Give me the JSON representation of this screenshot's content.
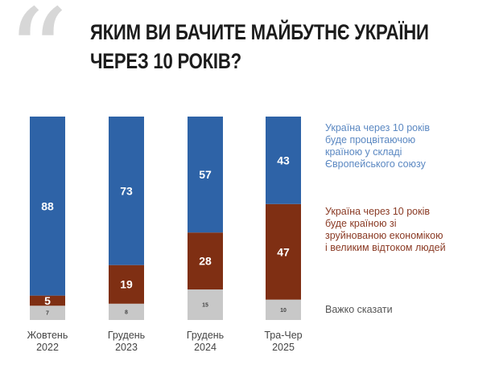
{
  "title_lines": [
    "ЯКИМ ВИ БАЧИТЕ МАЙБУТНЄ УКРАЇНИ",
    "ЧЕРЕЗ 10 РОКІВ?"
  ],
  "chart_data": {
    "type": "bar",
    "stacked": true,
    "categories": [
      [
        "Жовтень",
        "2022"
      ],
      [
        "Грудень",
        "2023"
      ],
      [
        "Грудень",
        "2024"
      ],
      [
        "Тра-Чер",
        "2025"
      ]
    ],
    "series": [
      {
        "name": "Україна через 10 років буде процвітаючою країною у складі Європейського союзу",
        "values": [
          88,
          73,
          57,
          43
        ],
        "color": "#2e63a7",
        "label_color": "#ffffff"
      },
      {
        "name": "Україна через 10 років буде країною зі зруйнованою економікою і великим відтоком людей",
        "values": [
          5,
          19,
          28,
          47
        ],
        "color": "#7f2f13",
        "label_color": "#ffffff"
      },
      {
        "name": "Важко сказати",
        "values": [
          7,
          8,
          15,
          10
        ],
        "color": "#c8c8c8",
        "label_color": "#444444"
      }
    ],
    "ylim": [
      0,
      100
    ],
    "grid": false,
    "legend_position": "right"
  },
  "legend": [
    {
      "lines": [
        "Україна через 10 років",
        "буде процвітаючою",
        "країною у складі",
        "Європейського союзу"
      ]
    },
    {
      "lines": [
        "Україна через 10 років",
        "буде країною зі",
        "зруйнованою економікою",
        "і великим відтоком людей"
      ]
    },
    {
      "lines": [
        "Важко сказати"
      ]
    }
  ],
  "decor": {
    "quote_glyph": "“"
  }
}
